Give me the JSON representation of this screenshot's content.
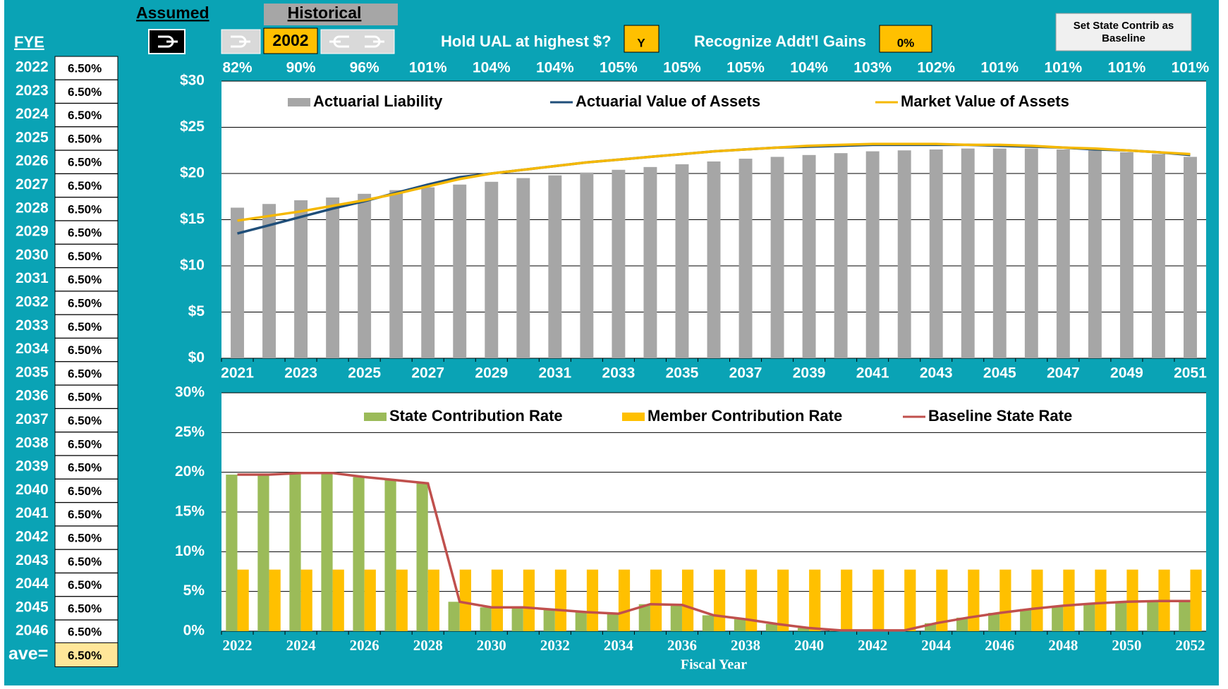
{
  "controls": {
    "assumed": "Assumed",
    "historical": "Historical",
    "year": "2002",
    "hold_ual_label": "Hold UAL at highest $?",
    "hold_ual_value": "Y",
    "gains_label": "Recognize Addt'l Gains",
    "gains_value": "0%",
    "baseline_button": "Set State Contrib as Baseline"
  },
  "fye": {
    "header": "FYE",
    "years": [
      "2022",
      "2023",
      "2024",
      "2025",
      "2026",
      "2027",
      "2028",
      "2029",
      "2030",
      "2031",
      "2032",
      "2033",
      "2034",
      "2035",
      "2036",
      "2037",
      "2038",
      "2039",
      "2040",
      "2041",
      "2042",
      "2043",
      "2044",
      "2045",
      "2046"
    ],
    "rates": [
      "6.50%",
      "6.50%",
      "6.50%",
      "6.50%",
      "6.50%",
      "6.50%",
      "6.50%",
      "6.50%",
      "6.50%",
      "6.50%",
      "6.50%",
      "6.50%",
      "6.50%",
      "6.50%",
      "6.50%",
      "6.50%",
      "6.50%",
      "6.50%",
      "6.50%",
      "6.50%",
      "6.50%",
      "6.50%",
      "6.50%",
      "6.50%",
      "6.50%"
    ],
    "ave_label": "ave=",
    "ave_value": "6.50%"
  },
  "chart_data": [
    {
      "type": "combo",
      "categories": [
        "2021",
        null,
        "2023",
        null,
        "2025",
        null,
        "2027",
        null,
        "2029",
        null,
        "2031",
        null,
        "2033",
        null,
        "2035",
        null,
        "2037",
        null,
        "2039",
        null,
        "2041",
        null,
        "2043",
        null,
        "2045",
        null,
        "2047",
        null,
        "2049",
        null,
        "2051"
      ],
      "annotations": [
        "82%",
        "90%",
        "96%",
        "101%",
        "104%",
        "104%",
        "105%",
        "105%",
        "105%",
        "104%",
        "103%",
        "102%",
        "101%",
        "101%",
        "101%",
        "101%"
      ],
      "series": [
        {
          "name": "Actuarial Liability",
          "kind": "bar",
          "color": "#a6a6a6",
          "values": [
            16.3,
            16.7,
            17.1,
            17.4,
            17.8,
            18.2,
            18.5,
            18.8,
            19.1,
            19.5,
            19.8,
            20.1,
            20.4,
            20.7,
            21.0,
            21.3,
            21.6,
            21.8,
            22.0,
            22.2,
            22.4,
            22.5,
            22.6,
            22.7,
            22.7,
            22.7,
            22.6,
            22.5,
            22.3,
            22.1,
            21.8
          ]
        },
        {
          "name": "Actuarial Value of Assets",
          "kind": "line",
          "color": "#1f4e79",
          "values": [
            13.5,
            14.4,
            15.3,
            16.2,
            17.0,
            17.9,
            18.8,
            19.6,
            20.0,
            20.4,
            20.8,
            21.2,
            21.5,
            21.8,
            22.1,
            22.4,
            22.6,
            22.8,
            22.9,
            23.0,
            23.1,
            23.1,
            23.1,
            23.1,
            23.0,
            22.9,
            22.8,
            22.6,
            22.5,
            22.3,
            22.0
          ]
        },
        {
          "name": "Market Value of Assets",
          "kind": "line",
          "color": "#f5b800",
          "values": [
            14.9,
            15.4,
            15.9,
            16.5,
            17.1,
            17.8,
            18.6,
            19.4,
            20.0,
            20.4,
            20.8,
            21.2,
            21.5,
            21.8,
            22.1,
            22.4,
            22.6,
            22.8,
            23.0,
            23.1,
            23.2,
            23.2,
            23.2,
            23.1,
            23.1,
            23.0,
            22.8,
            22.7,
            22.5,
            22.3,
            22.1
          ]
        }
      ],
      "ylim": [
        0,
        30
      ],
      "yticks": [
        {
          "value": 0,
          "label": "$0"
        },
        {
          "value": 5,
          "label": "$5"
        },
        {
          "value": 10,
          "label": "$10"
        },
        {
          "value": 15,
          "label": "$15"
        },
        {
          "value": 20,
          "label": "$20"
        },
        {
          "value": 25,
          "label": "$25"
        },
        {
          "value": 30,
          "label": "$30"
        }
      ],
      "grid": true
    },
    {
      "type": "combo",
      "categories": [
        "2022",
        null,
        "2024",
        null,
        "2026",
        null,
        "2028",
        null,
        "2030",
        null,
        "2032",
        null,
        "2034",
        null,
        "2036",
        null,
        "2038",
        null,
        "2040",
        null,
        "2042",
        null,
        "2044",
        null,
        "2046",
        null,
        "2048",
        null,
        "2050",
        null,
        "2052"
      ],
      "xlabel": "Fiscal Year",
      "series": [
        {
          "name": "State Contribution Rate",
          "kind": "bar",
          "color": "#9bbb59",
          "values": [
            19.7,
            19.7,
            19.9,
            19.9,
            19.4,
            19.0,
            18.6,
            3.7,
            3.0,
            3.0,
            2.7,
            2.4,
            2.2,
            3.4,
            3.3,
            2.0,
            1.5,
            0.9,
            0.4,
            0.1,
            0.1,
            0.1,
            1.0,
            1.7,
            2.3,
            2.8,
            3.2,
            3.5,
            3.7,
            3.8,
            3.8
          ]
        },
        {
          "name": "Member Contribution Rate",
          "kind": "bar",
          "color": "#ffc000",
          "values": [
            7.75,
            7.75,
            7.75,
            7.75,
            7.75,
            7.75,
            7.75,
            7.75,
            7.75,
            7.75,
            7.75,
            7.75,
            7.75,
            7.75,
            7.75,
            7.75,
            7.75,
            7.75,
            7.75,
            7.75,
            7.75,
            7.75,
            7.75,
            7.75,
            7.75,
            7.75,
            7.75,
            7.75,
            7.75,
            7.75,
            7.75
          ]
        },
        {
          "name": "Baseline State Rate",
          "kind": "line",
          "color": "#c0504d",
          "values": [
            19.7,
            19.7,
            19.9,
            19.9,
            19.4,
            19.0,
            18.6,
            3.7,
            3.0,
            3.0,
            2.7,
            2.4,
            2.2,
            3.4,
            3.3,
            2.0,
            1.5,
            0.9,
            0.4,
            0.1,
            0.1,
            0.1,
            1.0,
            1.7,
            2.3,
            2.8,
            3.2,
            3.5,
            3.7,
            3.8,
            3.8
          ]
        }
      ],
      "ylim": [
        0,
        30
      ],
      "yticks": [
        {
          "value": 0,
          "label": "0%"
        },
        {
          "value": 5,
          "label": "5%"
        },
        {
          "value": 10,
          "label": "10%"
        },
        {
          "value": 15,
          "label": "15%"
        },
        {
          "value": 20,
          "label": "20%"
        },
        {
          "value": 25,
          "label": "25%"
        },
        {
          "value": 30,
          "label": "30%"
        }
      ],
      "grid": true
    }
  ]
}
